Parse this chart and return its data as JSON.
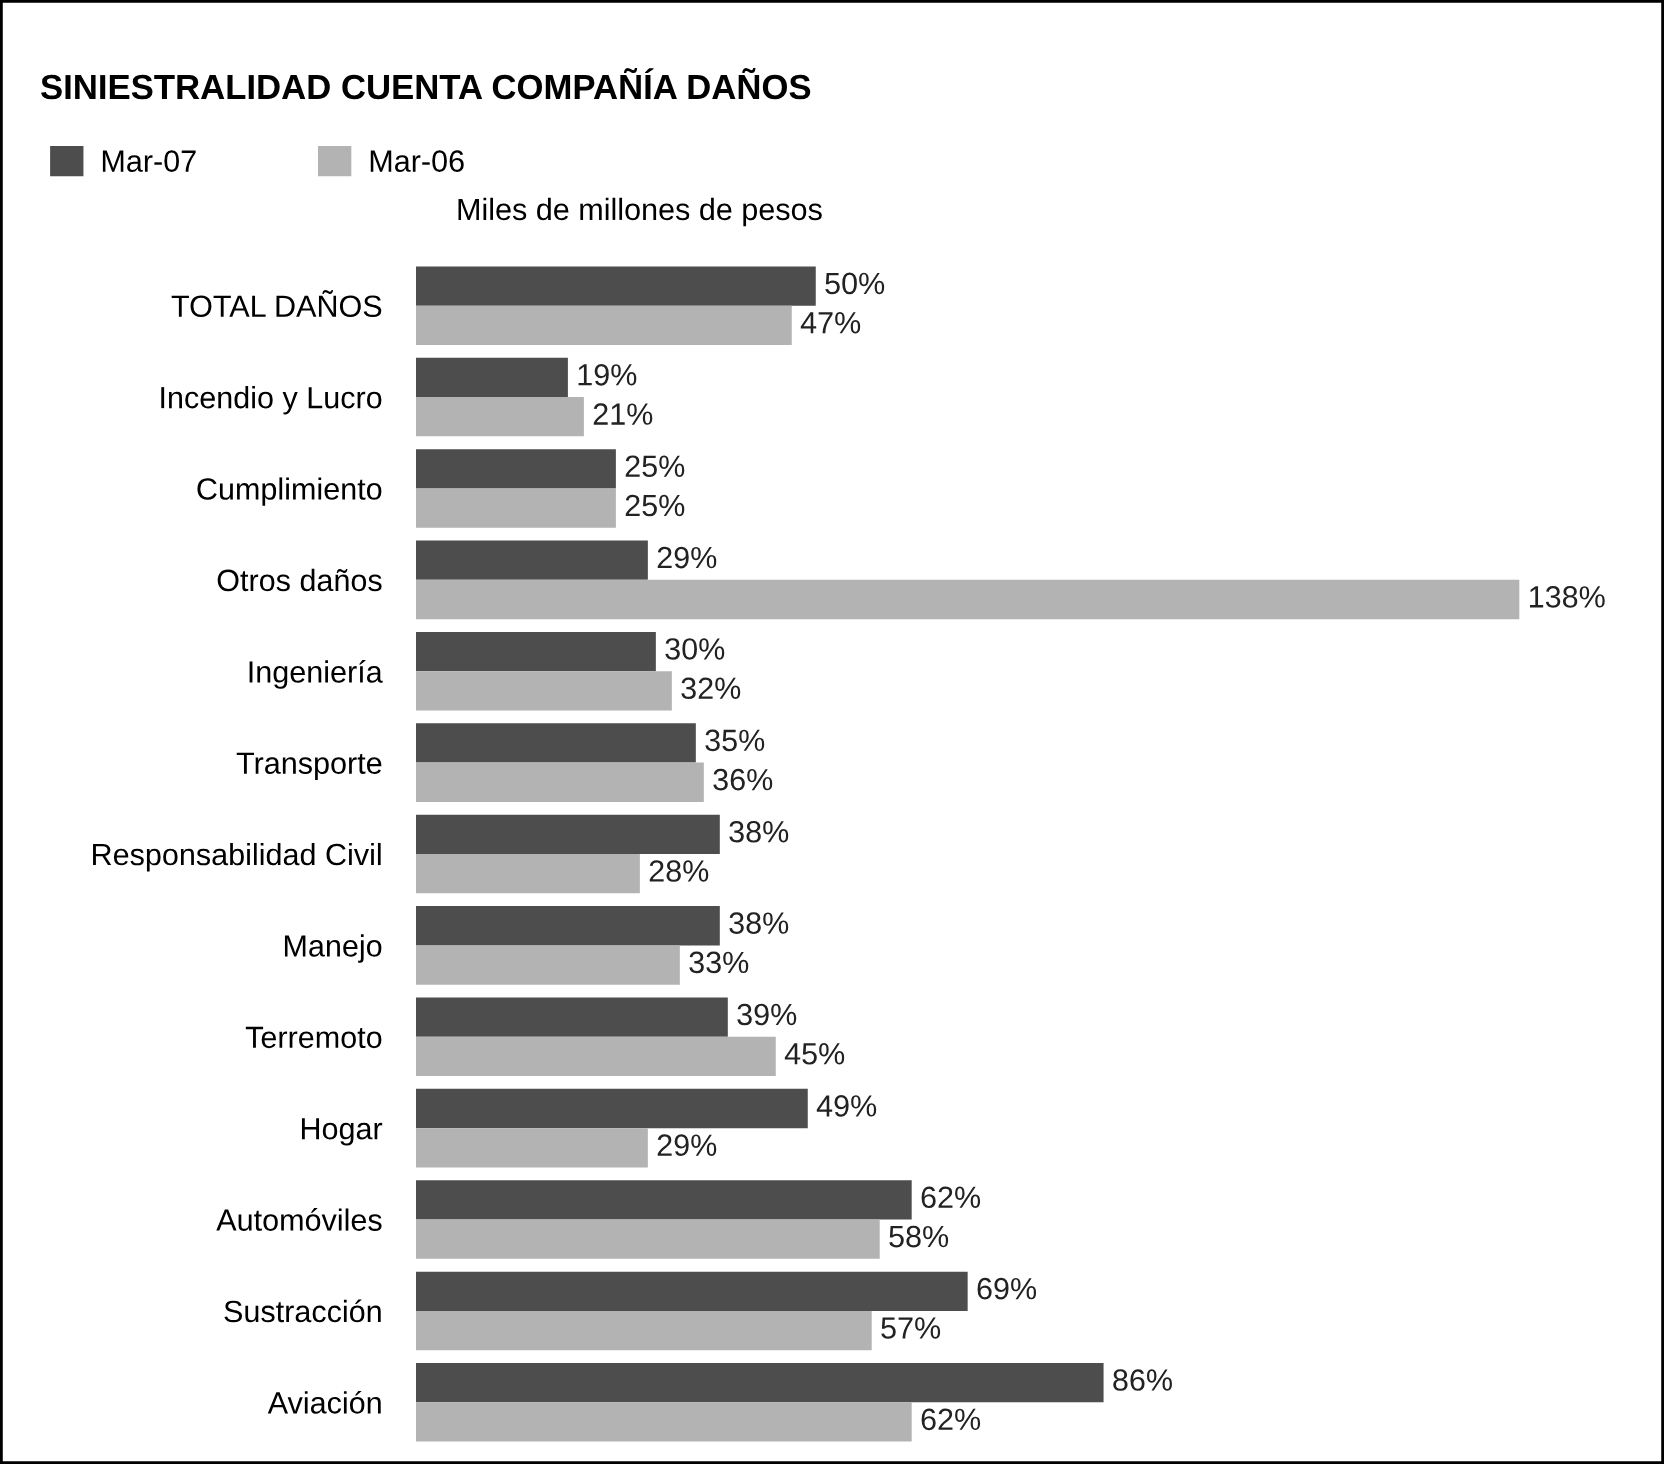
{
  "chart_data": {
    "type": "bar",
    "orientation": "horizontal",
    "title": "SINIESTRALIDAD CUENTA COMPAÑÍA DAÑOS",
    "subtitle": "Miles de millones de pesos",
    "legend": "top left",
    "categories": [
      "TOTAL DAÑOS",
      "Incendio y Lucro",
      "Cumplimiento",
      "Otros daños",
      "Ingeniería",
      "Transporte",
      "Responsabilidad Civil",
      "Manejo",
      "Terremoto",
      "Hogar",
      "Automóviles",
      "Sustracción",
      "Aviación"
    ],
    "series": [
      {
        "name": "Mar-07",
        "color": "#4d4d4d",
        "values": [
          50,
          19,
          25,
          29,
          30,
          35,
          38,
          38,
          39,
          49,
          62,
          69,
          86
        ],
        "value_labels": [
          "50%",
          "19%",
          "25%",
          "29%",
          "30%",
          "35%",
          "38%",
          "38%",
          "39%",
          "49%",
          "62%",
          "69%",
          "86%"
        ]
      },
      {
        "name": "Mar-06",
        "color": "#b3b3b3",
        "values": [
          47,
          21,
          25,
          138,
          32,
          36,
          28,
          33,
          45,
          29,
          58,
          57,
          62
        ],
        "value_labels": [
          "47%",
          "21%",
          "25%",
          "138%",
          "32%",
          "36%",
          "28%",
          "33%",
          "45%",
          "29%",
          "58%",
          "57%",
          "62%"
        ]
      }
    ]
  }
}
